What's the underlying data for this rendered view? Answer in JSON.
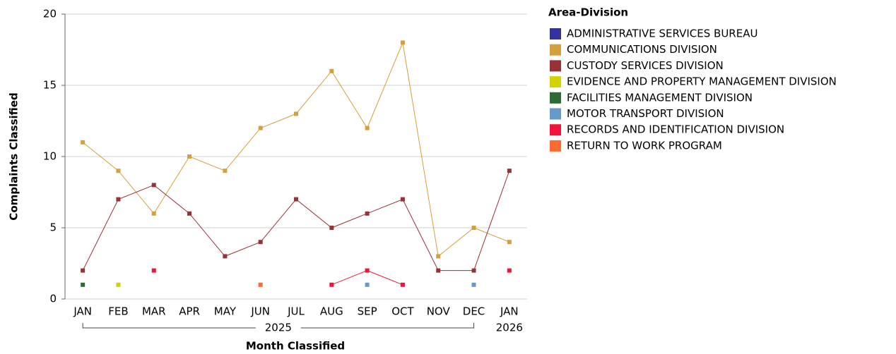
{
  "chart_data": {
    "type": "line",
    "x_label": "Month Classified",
    "y_label": "Complaints Classified",
    "legend_title": "Area-Division",
    "legend": "right",
    "grid": true,
    "categories": [
      "JAN",
      "FEB",
      "MAR",
      "APR",
      "MAY",
      "JUN",
      "JUL",
      "AUG",
      "SEP",
      "OCT",
      "NOV",
      "DEC",
      "JAN"
    ],
    "year_groups": [
      {
        "label": "2025",
        "start": 0,
        "end": 11
      },
      {
        "label": "2026",
        "start": 12,
        "end": 12
      }
    ],
    "ylim": [
      0,
      20
    ],
    "yticks": [
      0,
      5,
      10,
      15,
      20
    ],
    "series": [
      {
        "name": "ADMINISTRATIVE SERVICES BUREAU",
        "color": "#33339f",
        "values": [
          null,
          null,
          null,
          null,
          null,
          null,
          null,
          null,
          null,
          null,
          null,
          null,
          null
        ]
      },
      {
        "name": "COMMUNICATIONS DIVISION",
        "color": "#d4a03c",
        "values": [
          11,
          9,
          6,
          10,
          9,
          12,
          13,
          16,
          12,
          18,
          3,
          5,
          4
        ]
      },
      {
        "name": "CUSTODY SERVICES DIVISION",
        "color": "#963237",
        "values": [
          2,
          7,
          8,
          6,
          3,
          4,
          7,
          5,
          6,
          7,
          2,
          2,
          9
        ]
      },
      {
        "name": "EVIDENCE AND PROPERTY MANAGEMENT DIVISION",
        "color": "#d2d200",
        "values": [
          null,
          1,
          null,
          null,
          null,
          null,
          null,
          null,
          null,
          null,
          null,
          null,
          null
        ]
      },
      {
        "name": "FACILITIES MANAGEMENT DIVISION",
        "color": "#2e6b34",
        "values": [
          1,
          null,
          null,
          null,
          null,
          null,
          null,
          null,
          null,
          null,
          null,
          null,
          null
        ]
      },
      {
        "name": "MOTOR TRANSPORT DIVISION",
        "color": "#6699cc",
        "values": [
          null,
          null,
          null,
          null,
          null,
          null,
          null,
          null,
          1,
          null,
          null,
          1,
          null
        ]
      },
      {
        "name": "RECORDS AND IDENTIFICATION DIVISION",
        "color": "#f0143c",
        "values": [
          null,
          null,
          2,
          null,
          null,
          null,
          null,
          1,
          2,
          1,
          null,
          null,
          2
        ]
      },
      {
        "name": "RETURN TO WORK PROGRAM",
        "color": "#ff6a33",
        "values": [
          null,
          null,
          null,
          null,
          null,
          1,
          null,
          null,
          null,
          null,
          null,
          null,
          null
        ]
      }
    ]
  }
}
